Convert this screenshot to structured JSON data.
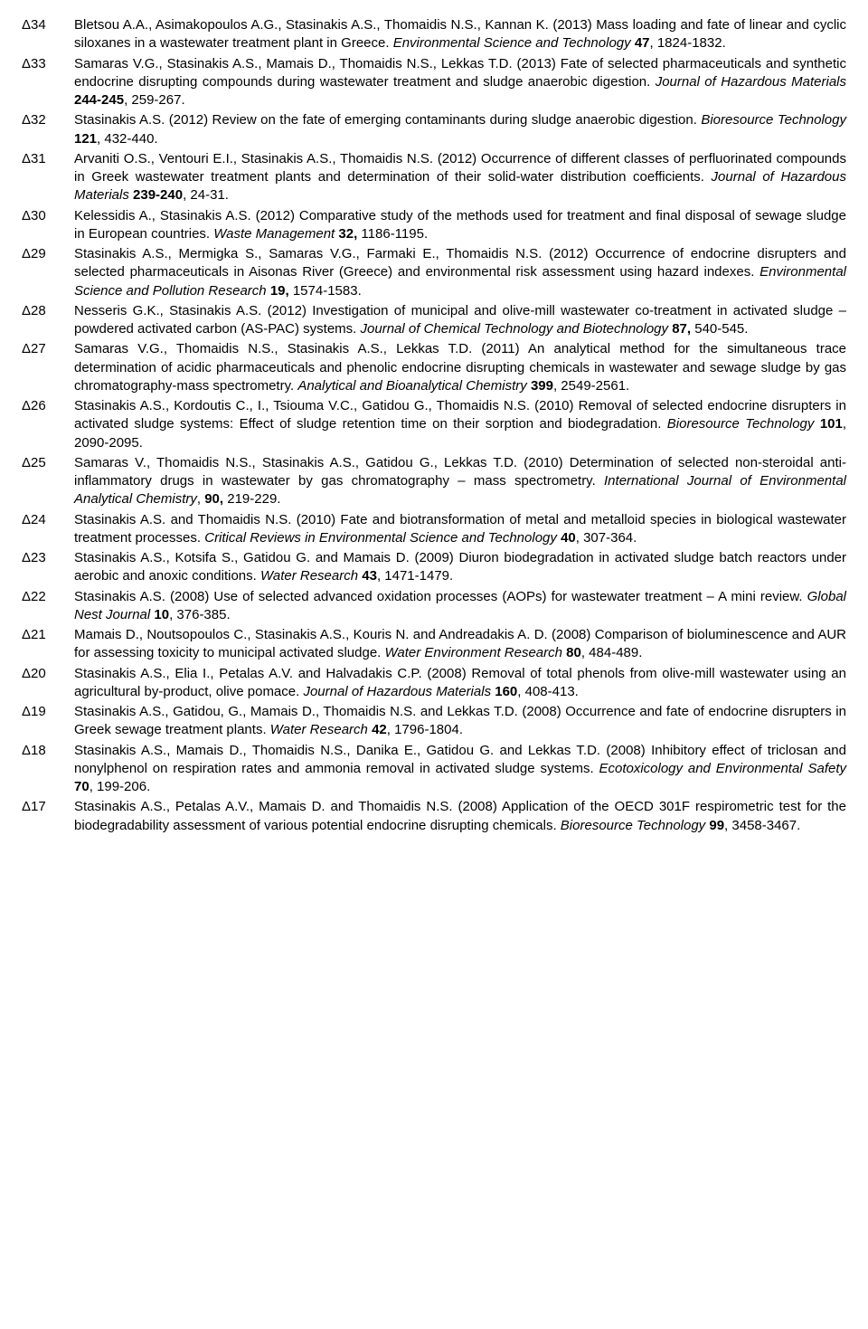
{
  "references": [
    {
      "num": "Δ34",
      "html": "Bletsou A.A., Asimakopoulos A.G., Stasinakis A.S., Thomaidis N.S., Kannan K. (2013) Mass loading and fate of linear and cyclic siloxanes in a wastewater treatment plant in Greece. <span class='italic'>Environmental Science and Technology</span> <span class='bold'>47</span>, 1824-1832."
    },
    {
      "num": "Δ33",
      "html": "Samaras V.G., Stasinakis A.S., Mamais D., Thomaidis N.S., Lekkas T.D. (2013) Fate of selected pharmaceuticals and synthetic endocrine disrupting compounds during wastewater treatment and sludge anaerobic digestion. <span class='italic'>Journal of Hazardous Materials</span> <span class='bold'>244-245</span>, 259-267."
    },
    {
      "num": "Δ32",
      "html": "Stasinakis A.S. (2012) Review on the fate of emerging contaminants during sludge anaerobic digestion. <span class='italic'>Bioresource Technology</span> <span class='bold'>121</span>, 432-440."
    },
    {
      "num": "Δ31",
      "html": "Arvaniti O.S., Ventouri E.I., Stasinakis A.S., Thomaidis N.S. (2012) Occurrence of different classes of perfluorinated compounds in Greek wastewater treatment plants and determination of their solid-water distribution coefficients. <span class='italic'>Journal of Hazardous Materials</span> <span class='bold'>239-240</span>, 24-31."
    },
    {
      "num": "Δ30",
      "html": "Kelessidis A., Stasinakis A.S. (2012) Comparative study of the methods used for treatment and final disposal of sewage sludge in European countries. <span class='italic'>Waste Management</span> <span class='bold'>32,</span> 1186-1195."
    },
    {
      "num": "Δ29",
      "html": "Stasinakis A.S., Mermigka S., Samaras V.G., Farmaki E., Thomaidis N.S. (2012) Occurrence of endocrine disrupters and selected pharmaceuticals in Aisonas River (Greece) and environmental risk assessment using hazard indexes. <span class='italic'>Environmental Science and Pollution Research</span> <span class='bold'>19,</span> 1574-1583."
    },
    {
      "num": "Δ28",
      "html": "Nesseris G.K., Stasinakis A.S. (2012) Investigation of municipal and olive-mill wastewater co-treatment in activated sludge – powdered activated carbon (AS-PAC) systems. <span class='italic'>Journal of Chemical Technology and Biotechnology</span> <span class='bold'>87,</span> 540-545."
    },
    {
      "num": "Δ27",
      "html": "Samaras V.G., Thomaidis N.S., Stasinakis A.S., Lekkas T.D. (2011) An analytical method for the simultaneous trace determination of acidic pharmaceuticals and phenolic endocrine disrupting chemicals in wastewater and sewage sludge by gas chromatography-mass spectrometry. <span class='italic'>Analytical and Bioanalytical Chemistry</span> <span class='bold'>399</span>, 2549-2561."
    },
    {
      "num": "Δ26",
      "html": "Stasinakis A.S., Kordoutis C., I., Tsiouma V.C., Gatidou G., Thomaidis N.S. (2010) Removal of selected endocrine disrupters in activated sludge systems: Effect of sludge retention time on their sorption and biodegradation. <span class='italic'>Bioresource Technology</span> <span class='bold'>101</span>, 2090-2095."
    },
    {
      "num": "Δ25",
      "html": "Samaras V., Thomaidis N.S., Stasinakis A.S., Gatidou G., Lekkas T.D. (2010) Determination of selected non-steroidal anti-inflammatory drugs in wastewater by gas chromatography – mass spectrometry. <span class='italic'>International Journal of Environmental Analytical Chemistry</span>, <span class='bold'>90,</span> 219-229."
    },
    {
      "num": "Δ24",
      "html": "Stasinakis A.S. and Thomaidis N.S. (2010) Fate and biotransformation of metal and metalloid species in biological wastewater treatment processes. <span class='italic'>Critical Reviews in Environmental Science and Technology</span> <span class='bold'>40</span>, 307-364."
    },
    {
      "num": "Δ23",
      "html": "Stasinakis A.S., Kotsifa S., Gatidou G. and Mamais D. (2009) Diuron biodegradation in activated sludge batch reactors under aerobic and anoxic conditions. <span class='italic'>Water Research</span> <span class='bold'>43</span>, 1471-1479."
    },
    {
      "num": "Δ22",
      "html": "Stasinakis A.S. (2008) Use of selected advanced oxidation processes (AOPs) for wastewater treatment – A mini review. <span class='italic'>Global Nest Journal</span> <span class='bold'>10</span>, 376-385."
    },
    {
      "num": "Δ21",
      "html": "Mamais D., Noutsopoulos C., Stasinakis A.S., Kouris N. and Andreadakis A. D. (2008) Comparison of bioluminescence and AUR for assessing toxicity to municipal activated sludge. <span class='italic'>Water Environment Research</span> <span class='bold'>80</span>, 484-489."
    },
    {
      "num": "Δ20",
      "html": "Stasinakis A.S., Elia I., Petalas A.V. and Halvadakis C.P. (2008) Removal of total phenols from olive-mill wastewater using an agricultural by-product, olive pomace. <span class='italic'>Journal of Hazardous Materials</span> <span class='bold'>160</span>, 408-413."
    },
    {
      "num": "Δ19",
      "html": "Stasinakis A.S., Gatidou, G., Mamais D., Thomaidis N.S. and Lekkas T.D. (2008) Occurrence and fate of endocrine disrupters in Greek sewage treatment plants. <span class='italic'>Water Research</span> <span class='bold'>42</span>, 1796-1804."
    },
    {
      "num": "Δ18",
      "html": "Stasinakis A.S., Mamais D., Thomaidis N.S., Danika E., Gatidou G. and Lekkas T.D. (2008) Inhibitory effect of triclosan and nonylphenol on respiration rates and ammonia removal in activated sludge systems. <span class='italic'>Ecotoxicology and Environmental Safety</span> <span class='bold'>70</span>, 199-206."
    },
    {
      "num": "Δ17",
      "html": "Stasinakis A.S., Petalas A.V., Mamais D. and Thomaidis N.S. (2008) Application of the OECD 301F respirometric test for the biodegradability assessment of various potential endocrine disrupting chemicals. <span class='italic'>Bioresource Technology</span> <span class='bold'>99</span>, 3458-3467."
    }
  ]
}
